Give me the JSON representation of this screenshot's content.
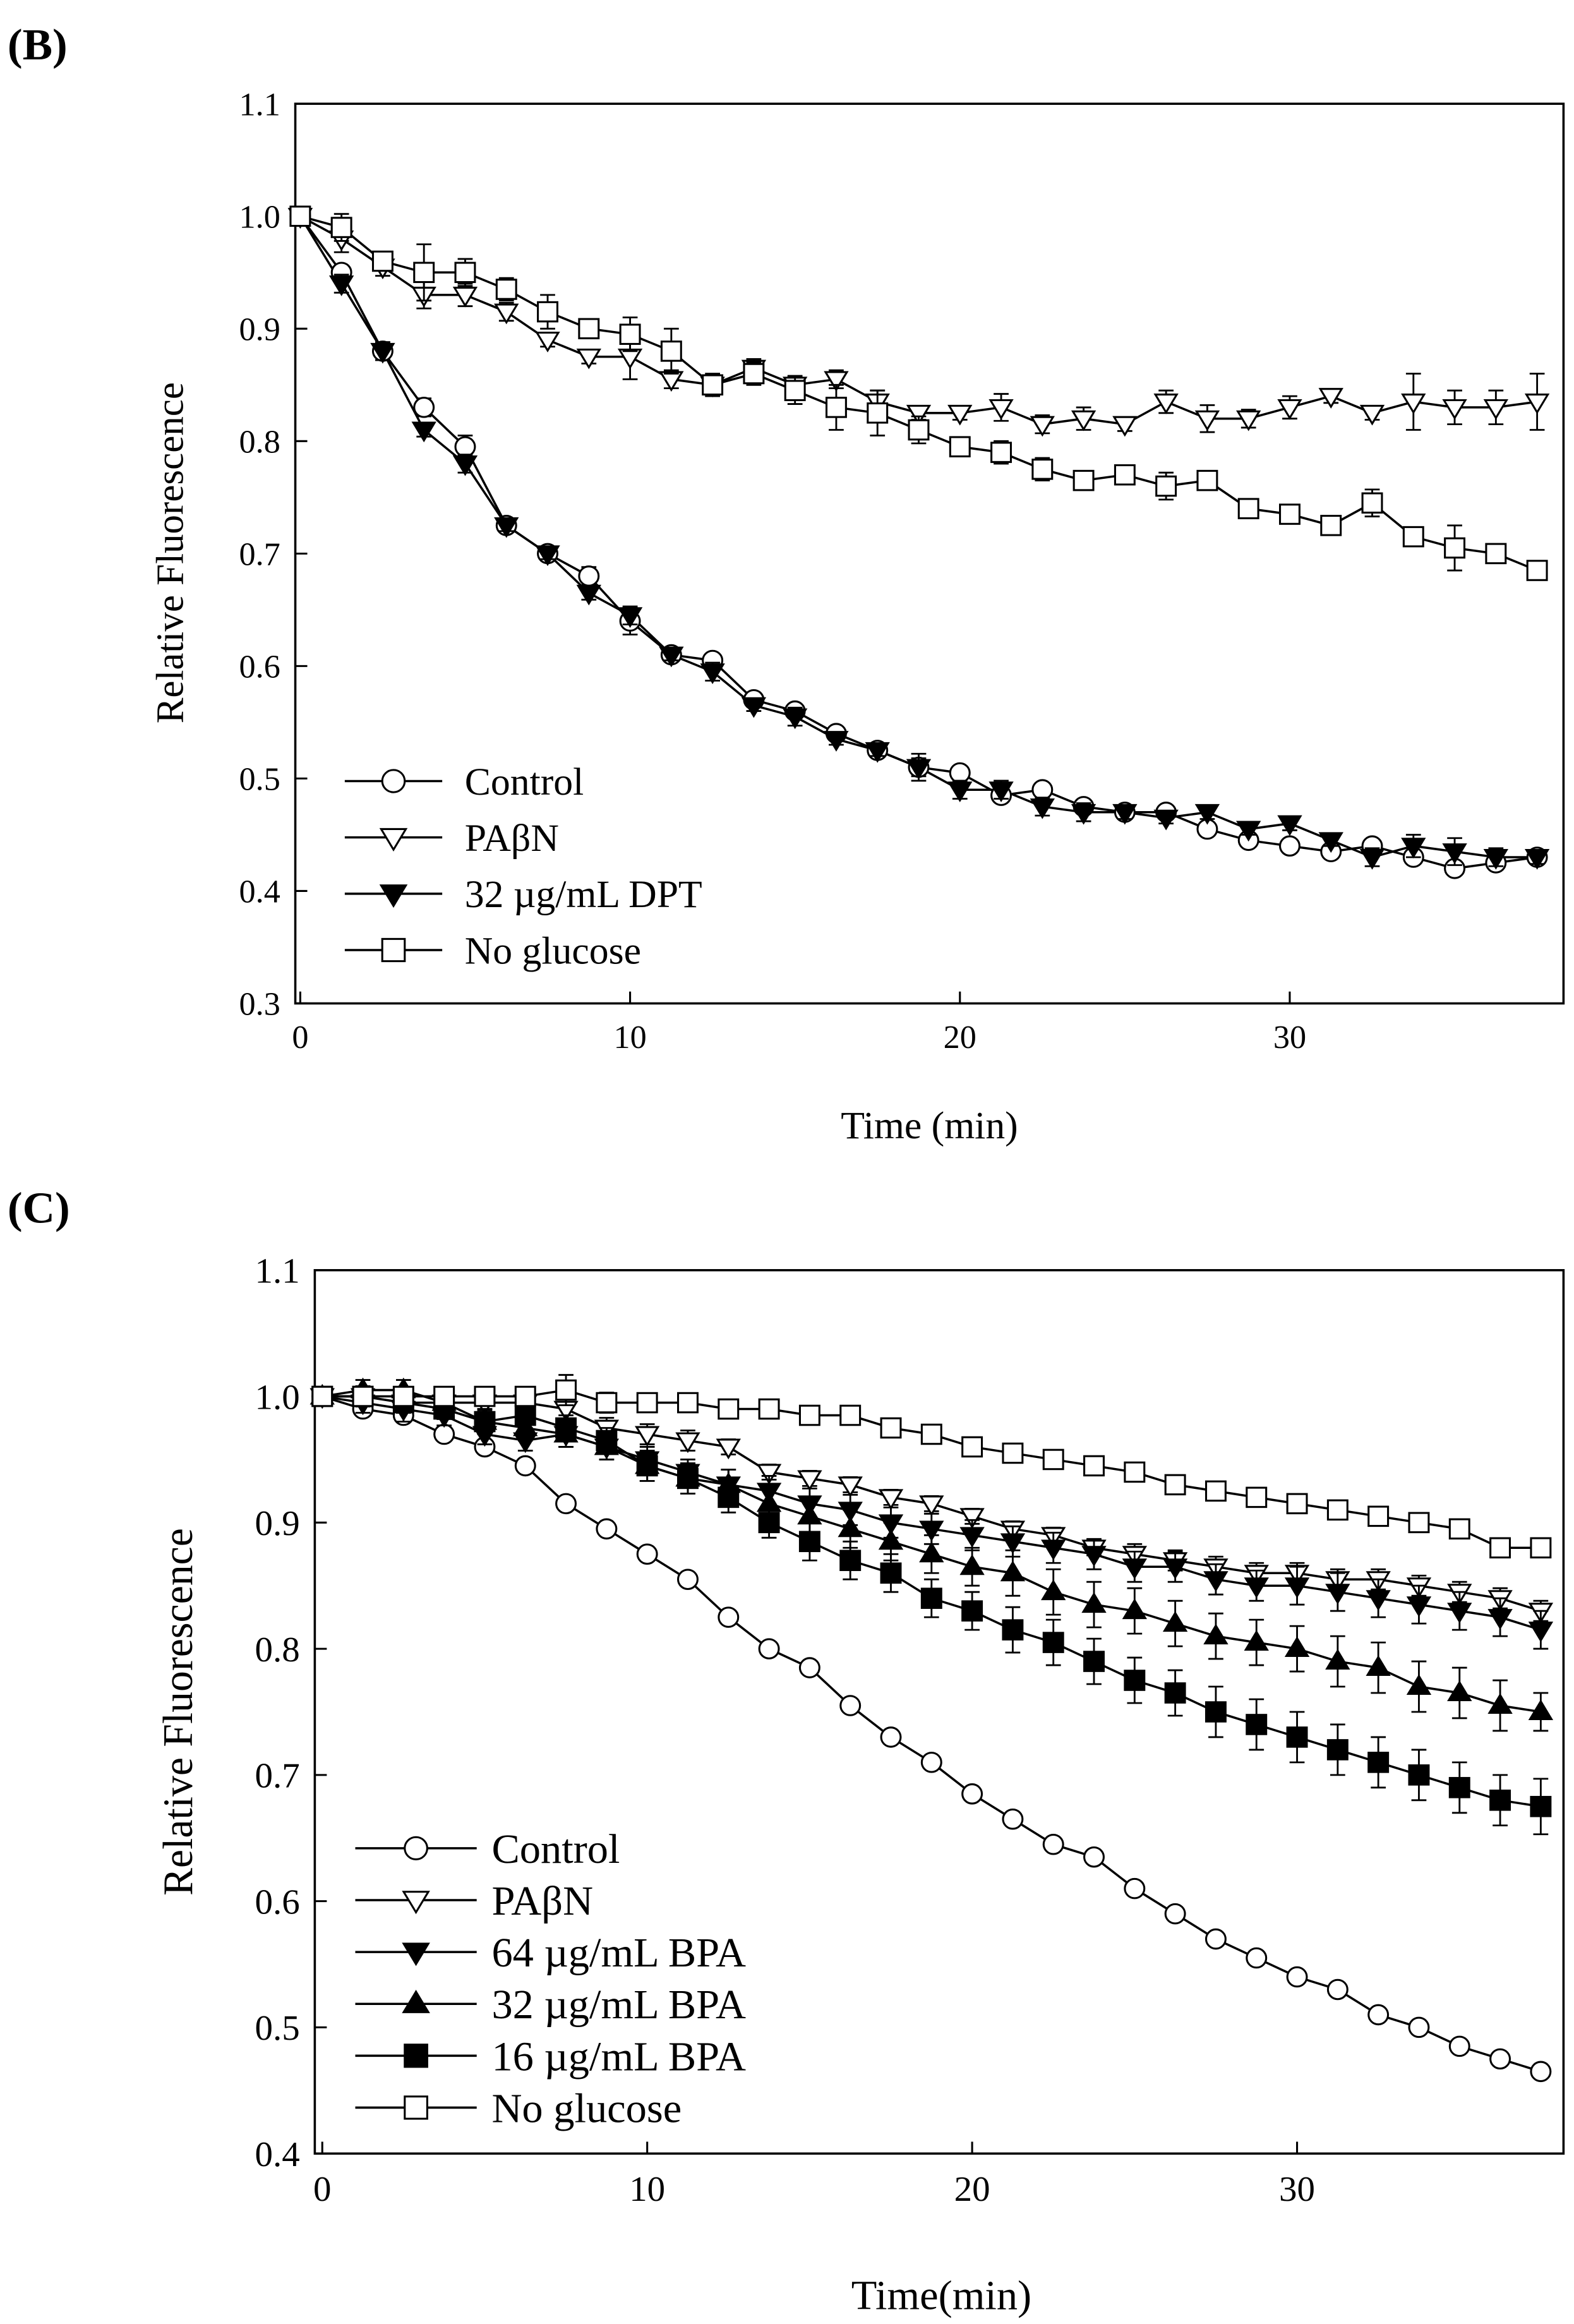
{
  "chart_data": [
    {
      "type": "line",
      "panel_label": "(B)",
      "xlabel": "Time (min)",
      "ylabel": "Relative Fluorescence",
      "legend": "lower left",
      "x": [
        0,
        1.25,
        2.5,
        3.75,
        5,
        6.25,
        7.5,
        8.75,
        10,
        11.25,
        12.5,
        13.75,
        15,
        16.25,
        17.5,
        18.75,
        20,
        21.25,
        22.5,
        23.75,
        25,
        26.25,
        27.5,
        28.75,
        30,
        31.25,
        32.5,
        33.75,
        35,
        36.25,
        37.5
      ],
      "xlim": [
        -0.15,
        38.3
      ],
      "xticks": [
        0,
        10,
        20,
        30
      ],
      "ylim": [
        0.3,
        1.1
      ],
      "yticks": [
        0.3,
        0.4,
        0.5,
        0.6,
        0.7,
        0.8,
        0.9,
        {
          "value": 1,
          "label": "1.0"
        },
        1.1
      ],
      "series": [
        {
          "name": "Control",
          "color": "#000000",
          "marker": "circle",
          "filled": false,
          "values": [
            1.0,
            0.95,
            0.88,
            0.83,
            0.795,
            0.725,
            0.7,
            0.68,
            0.64,
            0.61,
            0.605,
            0.57,
            0.56,
            0.54,
            0.525,
            0.51,
            0.505,
            0.485,
            0.49,
            0.475,
            0.47,
            0.47,
            0.455,
            0.445,
            0.44,
            0.435,
            0.44,
            0.43,
            0.42,
            0.425,
            0.43
          ],
          "errors": [
            0.003,
            0.006,
            0.008,
            0.008,
            0.01,
            0.005,
            0.005,
            0.008,
            0.012,
            0.005,
            0.005,
            0.006,
            0.005,
            0.005,
            0.005,
            0.008,
            0.005,
            0.005,
            0.006,
            0.005,
            0.005,
            0.005,
            0.005,
            0.005,
            0.005,
            0.005,
            0.005,
            0.006,
            0.005,
            0.006,
            0.005
          ]
        },
        {
          "name": "PAβN",
          "color": "#000000",
          "marker": "triangle-down",
          "filled": false,
          "values": [
            1.0,
            0.98,
            0.955,
            0.93,
            0.93,
            0.915,
            0.89,
            0.875,
            0.875,
            0.855,
            0.85,
            0.865,
            0.85,
            0.855,
            0.835,
            0.825,
            0.825,
            0.83,
            0.815,
            0.82,
            0.815,
            0.835,
            0.82,
            0.82,
            0.83,
            0.84,
            0.825,
            0.835,
            0.83,
            0.83,
            0.835
          ],
          "errors": [
            0.003,
            0.012,
            0.008,
            0.012,
            0.01,
            0.008,
            0.006,
            0.006,
            0.02,
            0.008,
            0.005,
            0.008,
            0.008,
            0.008,
            0.01,
            0.006,
            0.006,
            0.012,
            0.008,
            0.01,
            0.006,
            0.01,
            0.012,
            0.008,
            0.01,
            0.006,
            0.006,
            0.025,
            0.015,
            0.015,
            0.025
          ]
        },
        {
          "name": "32 µg/mL DPT",
          "color": "#000000",
          "marker": "triangle-down",
          "filled": true,
          "values": [
            1.0,
            0.94,
            0.88,
            0.81,
            0.78,
            0.725,
            0.7,
            0.665,
            0.645,
            0.61,
            0.595,
            0.565,
            0.555,
            0.535,
            0.525,
            0.51,
            0.49,
            0.49,
            0.475,
            0.47,
            0.47,
            0.465,
            0.47,
            0.455,
            0.46,
            0.445,
            0.43,
            0.44,
            0.435,
            0.43,
            0.43
          ],
          "errors": [
            0.003,
            0.008,
            0.008,
            0.006,
            0.008,
            0.005,
            0.005,
            0.006,
            0.008,
            0.005,
            0.008,
            0.005,
            0.008,
            0.005,
            0.005,
            0.012,
            0.008,
            0.008,
            0.008,
            0.008,
            0.006,
            0.005,
            0.006,
            0.005,
            0.006,
            0.005,
            0.008,
            0.01,
            0.012,
            0.008,
            0.006
          ]
        },
        {
          "name": "No glucose",
          "color": "#000000",
          "marker": "square",
          "filled": false,
          "values": [
            1.0,
            0.99,
            0.96,
            0.95,
            0.95,
            0.935,
            0.915,
            0.9,
            0.895,
            0.88,
            0.85,
            0.86,
            0.845,
            0.83,
            0.825,
            0.81,
            0.795,
            0.79,
            0.775,
            0.765,
            0.77,
            0.76,
            0.765,
            0.74,
            0.735,
            0.725,
            0.745,
            0.715,
            0.705,
            0.7,
            0.685
          ],
          "errors": [
            0.003,
            0.012,
            0.008,
            0.025,
            0.012,
            0.01,
            0.015,
            0.008,
            0.015,
            0.02,
            0.01,
            0.01,
            0.012,
            0.02,
            0.02,
            0.012,
            0.006,
            0.01,
            0.01,
            0.006,
            0.006,
            0.012,
            0.008,
            0.006,
            0.006,
            0.006,
            0.012,
            0.008,
            0.02,
            0.008,
            0.008
          ]
        }
      ]
    },
    {
      "type": "line",
      "panel_label": "(C)",
      "xlabel": "Time(min)",
      "ylabel": "Relative Fluorescence",
      "legend": "lower left",
      "x": [
        0,
        1.25,
        2.5,
        3.75,
        5,
        6.25,
        7.5,
        8.75,
        10,
        11.25,
        12.5,
        13.75,
        15,
        16.25,
        17.5,
        18.75,
        20,
        21.25,
        22.5,
        23.75,
        25,
        26.25,
        27.5,
        28.75,
        30,
        31.25,
        32.5,
        33.75,
        35,
        36.25,
        37.5
      ],
      "xlim": [
        -0.23,
        38.2
      ],
      "xticks": [
        0,
        10,
        20,
        30
      ],
      "ylim": [
        0.4,
        1.1
      ],
      "yticks": [
        0.4,
        0.5,
        0.6,
        0.7,
        0.8,
        0.9,
        {
          "value": 1,
          "label": "1.0"
        },
        1.1
      ],
      "series": [
        {
          "name": "Control",
          "color": "#000000",
          "marker": "circle",
          "filled": false,
          "values": [
            1.0,
            0.99,
            0.985,
            0.97,
            0.96,
            0.945,
            0.915,
            0.895,
            0.875,
            0.855,
            0.825,
            0.8,
            0.785,
            0.755,
            0.73,
            0.71,
            0.685,
            0.665,
            0.645,
            0.635,
            0.61,
            0.59,
            0.57,
            0.555,
            0.54,
            0.53,
            0.51,
            0.5,
            0.485,
            0.475,
            0.465
          ],
          "errors": [
            0.003,
            0.005,
            0.005,
            0.005,
            0.005,
            0.005,
            0.005,
            0.005,
            0.005,
            0.005,
            0.005,
            0.005,
            0.005,
            0.005,
            0.005,
            0.005,
            0.005,
            0.005,
            0.005,
            0.005,
            0.005,
            0.005,
            0.005,
            0.005,
            0.005,
            0.005,
            0.005,
            0.005,
            0.005,
            0.005,
            0.005
          ]
        },
        {
          "name": "PAβN",
          "color": "#000000",
          "marker": "triangle-down",
          "filled": false,
          "values": [
            1.0,
            1.0,
            0.995,
            0.995,
            0.995,
            0.995,
            0.99,
            0.975,
            0.97,
            0.965,
            0.96,
            0.94,
            0.935,
            0.93,
            0.92,
            0.915,
            0.905,
            0.895,
            0.89,
            0.88,
            0.875,
            0.87,
            0.865,
            0.86,
            0.86,
            0.855,
            0.855,
            0.85,
            0.845,
            0.84,
            0.83
          ],
          "errors": [
            0.003,
            0.008,
            0.008,
            0.006,
            0.006,
            0.006,
            0.01,
            0.008,
            0.008,
            0.008,
            0.006,
            0.006,
            0.006,
            0.006,
            0.006,
            0.006,
            0.006,
            0.006,
            0.006,
            0.006,
            0.008,
            0.008,
            0.008,
            0.008,
            0.008,
            0.008,
            0.008,
            0.008,
            0.008,
            0.008,
            0.008
          ]
        },
        {
          "name": "64 µg/mL BPA",
          "color": "#000000",
          "marker": "triangle-down",
          "filled": true,
          "values": [
            1.0,
            0.995,
            0.99,
            0.985,
            0.97,
            0.965,
            0.97,
            0.96,
            0.95,
            0.94,
            0.93,
            0.925,
            0.915,
            0.91,
            0.9,
            0.895,
            0.89,
            0.885,
            0.88,
            0.875,
            0.865,
            0.865,
            0.855,
            0.85,
            0.85,
            0.845,
            0.84,
            0.835,
            0.83,
            0.825,
            0.815
          ],
          "errors": [
            0.003,
            0.008,
            0.01,
            0.008,
            0.008,
            0.008,
            0.01,
            0.01,
            0.01,
            0.01,
            0.012,
            0.012,
            0.012,
            0.012,
            0.012,
            0.012,
            0.012,
            0.012,
            0.012,
            0.012,
            0.012,
            0.012,
            0.012,
            0.012,
            0.015,
            0.015,
            0.015,
            0.015,
            0.015,
            0.015,
            0.015
          ]
        },
        {
          "name": "32 µg/mL BPA",
          "color": "#000000",
          "marker": "triangle-up",
          "filled": true,
          "values": [
            1.0,
            1.005,
            1.005,
            0.995,
            0.98,
            0.975,
            0.97,
            0.96,
            0.945,
            0.935,
            0.93,
            0.915,
            0.905,
            0.895,
            0.885,
            0.875,
            0.865,
            0.86,
            0.845,
            0.835,
            0.83,
            0.82,
            0.81,
            0.805,
            0.8,
            0.79,
            0.785,
            0.77,
            0.765,
            0.755,
            0.75
          ],
          "errors": [
            0.003,
            0.008,
            0.008,
            0.008,
            0.01,
            0.01,
            0.01,
            0.01,
            0.012,
            0.012,
            0.012,
            0.012,
            0.015,
            0.015,
            0.015,
            0.015,
            0.015,
            0.018,
            0.018,
            0.018,
            0.018,
            0.018,
            0.018,
            0.018,
            0.018,
            0.02,
            0.02,
            0.02,
            0.02,
            0.02,
            0.015
          ]
        },
        {
          "name": "16 µg/mL BPA",
          "color": "#000000",
          "marker": "square",
          "filled": true,
          "values": [
            1.0,
            1.0,
            0.995,
            0.99,
            0.98,
            0.985,
            0.975,
            0.965,
            0.945,
            0.935,
            0.92,
            0.9,
            0.885,
            0.87,
            0.86,
            0.84,
            0.83,
            0.815,
            0.805,
            0.79,
            0.775,
            0.765,
            0.75,
            0.74,
            0.73,
            0.72,
            0.71,
            0.7,
            0.69,
            0.68,
            0.675
          ],
          "errors": [
            0.003,
            0.008,
            0.008,
            0.008,
            0.01,
            0.01,
            0.01,
            0.01,
            0.012,
            0.012,
            0.012,
            0.012,
            0.015,
            0.015,
            0.015,
            0.015,
            0.015,
            0.018,
            0.018,
            0.018,
            0.018,
            0.018,
            0.02,
            0.02,
            0.02,
            0.02,
            0.02,
            0.02,
            0.02,
            0.02,
            0.022
          ]
        },
        {
          "name": "No glucose",
          "color": "#000000",
          "marker": "square",
          "filled": false,
          "values": [
            1.0,
            1.0,
            1.0,
            1.0,
            1.0,
            1.0,
            1.005,
            0.995,
            0.995,
            0.995,
            0.99,
            0.99,
            0.985,
            0.985,
            0.975,
            0.97,
            0.96,
            0.955,
            0.95,
            0.945,
            0.94,
            0.93,
            0.925,
            0.92,
            0.915,
            0.91,
            0.905,
            0.9,
            0.895,
            0.88,
            0.88
          ],
          "errors": [
            0.003,
            0.005,
            0.005,
            0.005,
            0.005,
            0.005,
            0.012,
            0.008,
            0.005,
            0.005,
            0.005,
            0.005,
            0.006,
            0.005,
            0.005,
            0.005,
            0.005,
            0.005,
            0.005,
            0.006,
            0.005,
            0.005,
            0.005,
            0.005,
            0.005,
            0.005,
            0.005,
            0.005,
            0.005,
            0.006,
            0.005
          ]
        }
      ]
    }
  ]
}
